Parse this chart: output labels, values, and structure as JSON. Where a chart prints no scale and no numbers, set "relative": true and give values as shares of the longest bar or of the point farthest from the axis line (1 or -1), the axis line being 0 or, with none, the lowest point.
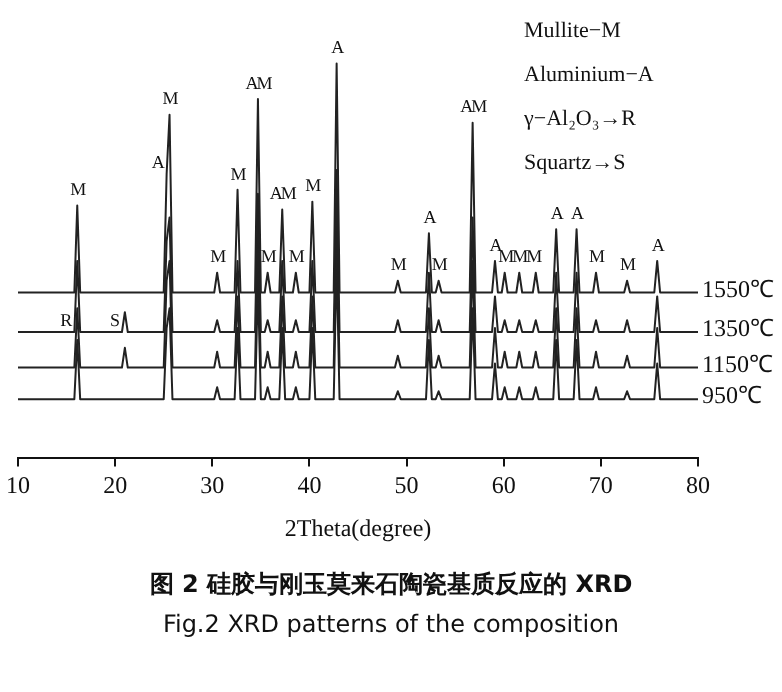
{
  "chart_data": {
    "type": "line",
    "relative": true,
    "title": "图 2  硅胶与刚玉莫来石陶瓷基质反应的 XRD",
    "subtitle": "Fig.2  XRD patterns of the composition",
    "xlabel": "2Theta(degree)",
    "xlim": [
      10,
      80
    ],
    "xticks": [
      10,
      20,
      30,
      40,
      50,
      60,
      70,
      80
    ],
    "marker": "none",
    "line_style": "solid",
    "grid": false,
    "x": [
      10,
      15.8,
      16.1,
      16.4,
      20.7,
      21.0,
      21.3,
      25.0,
      25.3,
      25.6,
      25.9,
      30.2,
      30.5,
      30.8,
      32.3,
      32.6,
      32.9,
      34.4,
      34.7,
      35.0,
      35.4,
      35.7,
      36.0,
      36.9,
      37.2,
      37.5,
      38.3,
      38.6,
      38.9,
      40.0,
      40.3,
      40.6,
      42.5,
      42.8,
      43.1,
      48.8,
      49.1,
      49.4,
      52.0,
      52.3,
      52.6,
      53.0,
      53.3,
      53.6,
      56.5,
      56.8,
      57.1,
      58.8,
      59.1,
      59.4,
      59.8,
      60.1,
      60.4,
      61.3,
      61.6,
      61.9,
      63.0,
      63.3,
      63.6,
      65.1,
      65.4,
      65.7,
      67.2,
      67.5,
      67.8,
      69.2,
      69.5,
      69.8,
      72.4,
      72.7,
      73.0,
      75.5,
      75.8,
      76.1,
      80
    ],
    "series": [
      {
        "name": "1550℃",
        "color": "#222222",
        "values": [
          0.42,
          0.42,
          0.64,
          0.42,
          0.42,
          0.42,
          0.42,
          0.42,
          0.72,
          0.87,
          0.42,
          0.42,
          0.47,
          0.42,
          0.42,
          0.68,
          0.42,
          0.42,
          0.91,
          0.42,
          0.42,
          0.47,
          0.42,
          0.42,
          0.63,
          0.42,
          0.42,
          0.47,
          0.42,
          0.42,
          0.65,
          0.42,
          0.42,
          1.0,
          0.42,
          0.42,
          0.45,
          0.42,
          0.42,
          0.57,
          0.42,
          0.42,
          0.45,
          0.42,
          0.42,
          0.85,
          0.42,
          0.42,
          0.5,
          0.42,
          0.42,
          0.47,
          0.42,
          0.42,
          0.47,
          0.42,
          0.42,
          0.47,
          0.42,
          0.42,
          0.58,
          0.42,
          0.42,
          0.58,
          0.42,
          0.42,
          0.47,
          0.42,
          0.42,
          0.45,
          0.42,
          0.42,
          0.5,
          0.42,
          0.42
        ]
      },
      {
        "name": "1350℃",
        "color": "#222222",
        "values": [
          0.32,
          0.32,
          0.5,
          0.32,
          0.32,
          0.37,
          0.32,
          0.32,
          0.55,
          0.61,
          0.32,
          0.32,
          0.35,
          0.32,
          0.32,
          0.5,
          0.32,
          0.32,
          0.67,
          0.32,
          0.32,
          0.35,
          0.32,
          0.32,
          0.5,
          0.32,
          0.32,
          0.35,
          0.32,
          0.32,
          0.5,
          0.32,
          0.32,
          0.73,
          0.32,
          0.32,
          0.35,
          0.32,
          0.32,
          0.47,
          0.32,
          0.32,
          0.35,
          0.32,
          0.32,
          0.61,
          0.32,
          0.32,
          0.41,
          0.32,
          0.32,
          0.35,
          0.32,
          0.32,
          0.35,
          0.32,
          0.32,
          0.35,
          0.32,
          0.32,
          0.47,
          0.32,
          0.32,
          0.47,
          0.32,
          0.32,
          0.35,
          0.32,
          0.32,
          0.35,
          0.32,
          0.32,
          0.41,
          0.32,
          0.32
        ]
      },
      {
        "name": "1150℃",
        "color": "#222222",
        "values": [
          0.23,
          0.23,
          0.38,
          0.23,
          0.23,
          0.28,
          0.23,
          0.23,
          0.45,
          0.5,
          0.23,
          0.23,
          0.27,
          0.23,
          0.23,
          0.41,
          0.23,
          0.23,
          0.55,
          0.23,
          0.23,
          0.27,
          0.23,
          0.23,
          0.41,
          0.23,
          0.23,
          0.27,
          0.23,
          0.23,
          0.41,
          0.23,
          0.23,
          0.61,
          0.23,
          0.23,
          0.26,
          0.23,
          0.23,
          0.38,
          0.23,
          0.23,
          0.26,
          0.23,
          0.23,
          0.5,
          0.23,
          0.23,
          0.33,
          0.23,
          0.23,
          0.27,
          0.23,
          0.23,
          0.27,
          0.23,
          0.23,
          0.27,
          0.23,
          0.23,
          0.38,
          0.23,
          0.23,
          0.38,
          0.23,
          0.23,
          0.27,
          0.23,
          0.23,
          0.26,
          0.23,
          0.23,
          0.33,
          0.23,
          0.23
        ]
      },
      {
        "name": "950℃",
        "color": "#222222",
        "values": [
          0.15,
          0.15,
          0.3,
          0.15,
          0.15,
          0.15,
          0.15,
          0.15,
          0.33,
          0.38,
          0.15,
          0.15,
          0.18,
          0.15,
          0.15,
          0.33,
          0.15,
          0.15,
          0.44,
          0.15,
          0.15,
          0.18,
          0.15,
          0.15,
          0.33,
          0.15,
          0.15,
          0.18,
          0.15,
          0.15,
          0.33,
          0.15,
          0.15,
          0.5,
          0.15,
          0.15,
          0.17,
          0.15,
          0.15,
          0.3,
          0.15,
          0.15,
          0.17,
          0.15,
          0.15,
          0.38,
          0.15,
          0.15,
          0.24,
          0.15,
          0.15,
          0.18,
          0.15,
          0.15,
          0.18,
          0.15,
          0.15,
          0.18,
          0.15,
          0.15,
          0.3,
          0.15,
          0.15,
          0.3,
          0.15,
          0.15,
          0.18,
          0.15,
          0.15,
          0.17,
          0.15,
          0.15,
          0.24,
          0.15,
          0.15
        ]
      }
    ],
    "annotations": [
      "Mullite−M",
      "Aluminium−A",
      "γ−Al₂O₃→R",
      "Squartz→S",
      {
        "text": "M",
        "x": 16.1,
        "y": 0.64
      },
      {
        "text": "R",
        "x": 15.8,
        "y": 0.32
      },
      {
        "text": "S",
        "x": 20.7,
        "y": 0.32
      },
      {
        "text": "A",
        "x": 25.3,
        "y": 0.72
      },
      {
        "text": "M",
        "x": 25.6,
        "y": 0.87
      },
      {
        "text": "M",
        "x": 30.5,
        "y": 0.47
      },
      {
        "text": "M",
        "x": 32.6,
        "y": 0.68
      },
      {
        "text": "AM",
        "x": 34.7,
        "y": 0.91
      },
      {
        "text": "M",
        "x": 35.7,
        "y": 0.47
      },
      {
        "text": "AM",
        "x": 37.2,
        "y": 0.63
      },
      {
        "text": "M",
        "x": 38.6,
        "y": 0.47
      },
      {
        "text": "M",
        "x": 40.3,
        "y": 0.65
      },
      {
        "text": "A",
        "x": 42.8,
        "y": 1.0
      },
      {
        "text": "M",
        "x": 49.1,
        "y": 0.45
      },
      {
        "text": "A",
        "x": 52.3,
        "y": 0.57
      },
      {
        "text": "M",
        "x": 53.3,
        "y": 0.45
      },
      {
        "text": "AM",
        "x": 56.8,
        "y": 0.85
      },
      {
        "text": "A",
        "x": 59.1,
        "y": 0.5
      },
      {
        "text": "MMM",
        "x": 61.6,
        "y": 0.47
      },
      {
        "text": "A",
        "x": 65.4,
        "y": 0.58
      },
      {
        "text": "A",
        "x": 67.5,
        "y": 0.58
      },
      {
        "text": "M",
        "x": 69.5,
        "y": 0.47
      },
      {
        "text": "M",
        "x": 72.7,
        "y": 0.45
      },
      {
        "text": "A",
        "x": 75.8,
        "y": 0.5
      }
    ]
  }
}
